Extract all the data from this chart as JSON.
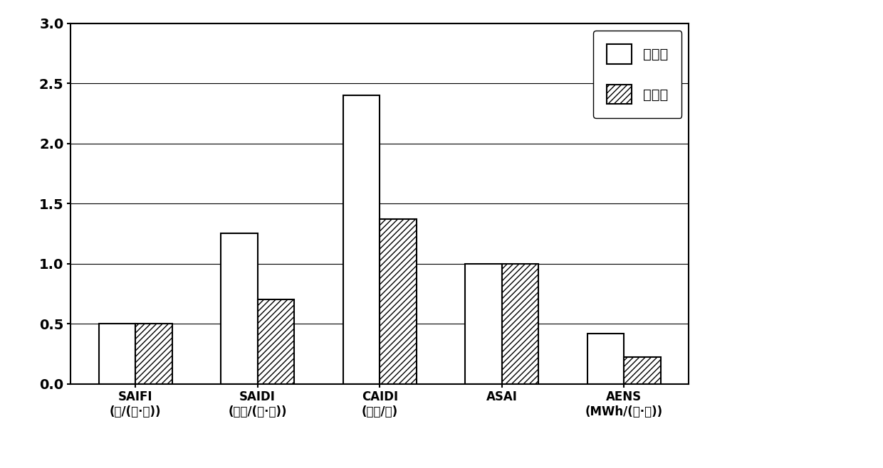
{
  "categories": [
    "SAIFI\n(次/(户·年))",
    "SAIDI\n(小时/(户·年))",
    "CAIDI\n(小时/户)",
    "ASAI",
    "AENS\n(MWh/(户·年))"
  ],
  "before": [
    0.5,
    1.25,
    2.4,
    1.0,
    0.42
  ],
  "after": [
    0.5,
    0.7,
    1.37,
    1.0,
    0.22
  ],
  "legend_before": "改造前",
  "legend_after": "改造后",
  "ylim": [
    0,
    3
  ],
  "yticks": [
    0,
    0.5,
    1.0,
    1.5,
    2.0,
    2.5,
    3.0
  ],
  "bar_width": 0.3,
  "color_before": "#ffffff",
  "color_after_face": "#ffffff",
  "edge_color": "#000000",
  "hatch_after": "////",
  "background_color": "#ffffff",
  "grid_color": "#000000",
  "font_size_tick": 12,
  "font_size_legend": 14
}
